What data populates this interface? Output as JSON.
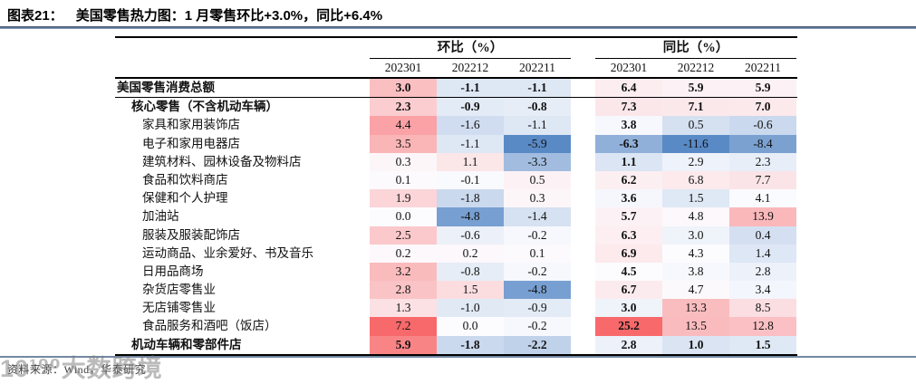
{
  "header": {
    "figure_label": "图表21：",
    "figure_caption": "美国零售热力图：1 月零售环比+3.0%，同比+6.4%"
  },
  "footer": {
    "source": "资料来源：Wind，华泰研究",
    "watermark": "10¹⁰⁰大数跨境"
  },
  "colors": {
    "title_rule_dark": "#34455E",
    "title_rule_light": "#8FA8C8",
    "footer_rule": "#7388A3",
    "table_line": "#000000",
    "heat_negative": "#5A8AC6",
    "heat_mid": "#FCFCFF",
    "heat_positive": "#F8696B"
  },
  "chart_data": {
    "type": "heatmap",
    "title": "图表21：美国零售热力图：1 月零售环比+3.0%，同比+6.4%",
    "column_groups": [
      {
        "key": "mom",
        "label": "环比（%）",
        "columns": [
          "202301",
          "202212",
          "202211"
        ]
      },
      {
        "key": "yoy",
        "label": "同比（%）",
        "columns": [
          "202301",
          "202212",
          "202211"
        ]
      }
    ],
    "rows": [
      {
        "label": "美国零售消费总额",
        "indent": 0,
        "bold": true,
        "mom": [
          3.0,
          -1.1,
          -1.1
        ],
        "yoy": [
          6.4,
          5.9,
          5.9
        ]
      },
      {
        "label": "核心零售（不含机动车辆）",
        "indent": 1,
        "bold": true,
        "mom": [
          2.3,
          -0.9,
          -0.8
        ],
        "yoy": [
          7.3,
          7.1,
          7.0
        ]
      },
      {
        "label": "家具和家用装饰店",
        "indent": 2,
        "bold": false,
        "mom": [
          4.4,
          -1.6,
          -1.1
        ],
        "yoy": [
          3.8,
          0.5,
          -0.6
        ]
      },
      {
        "label": "电子和家用电器店",
        "indent": 2,
        "bold": false,
        "mom": [
          3.5,
          -1.1,
          -5.9
        ],
        "yoy": [
          -6.3,
          -11.6,
          -8.4
        ]
      },
      {
        "label": "建筑材料、园林设备及物料店",
        "indent": 2,
        "bold": false,
        "mom": [
          0.3,
          1.1,
          -3.3
        ],
        "yoy": [
          1.1,
          2.9,
          2.3
        ]
      },
      {
        "label": "食品和饮料商店",
        "indent": 2,
        "bold": false,
        "mom": [
          0.1,
          -0.1,
          0.5
        ],
        "yoy": [
          6.2,
          6.8,
          7.7
        ]
      },
      {
        "label": "保健和个人护理",
        "indent": 2,
        "bold": false,
        "mom": [
          1.9,
          -1.8,
          0.3
        ],
        "yoy": [
          3.6,
          1.5,
          4.1
        ]
      },
      {
        "label": "加油站",
        "indent": 2,
        "bold": false,
        "mom": [
          0.0,
          -4.8,
          -1.4
        ],
        "yoy": [
          5.7,
          4.8,
          13.9
        ]
      },
      {
        "label": "服装及服装配饰店",
        "indent": 2,
        "bold": false,
        "mom": [
          2.5,
          -0.6,
          -0.2
        ],
        "yoy": [
          6.3,
          3.0,
          0.4
        ]
      },
      {
        "label": "运动商品、业余爱好、书及音乐",
        "indent": 2,
        "bold": false,
        "mom": [
          0.2,
          0.2,
          0.1
        ],
        "yoy": [
          6.9,
          4.3,
          1.4
        ]
      },
      {
        "label": "日用品商场",
        "indent": 2,
        "bold": false,
        "mom": [
          3.2,
          -0.8,
          -0.2
        ],
        "yoy": [
          4.5,
          3.8,
          2.8
        ]
      },
      {
        "label": "杂货店零售业",
        "indent": 2,
        "bold": false,
        "mom": [
          2.8,
          1.5,
          -4.8
        ],
        "yoy": [
          6.7,
          4.7,
          3.4
        ]
      },
      {
        "label": "无店铺零售业",
        "indent": 2,
        "bold": false,
        "mom": [
          1.3,
          -1.0,
          -0.9
        ],
        "yoy": [
          3.0,
          13.3,
          8.5
        ]
      },
      {
        "label": "食品服务和酒吧（饭店）",
        "indent": 2,
        "bold": false,
        "mom": [
          7.2,
          0.0,
          -0.2
        ],
        "yoy": [
          25.2,
          13.5,
          12.8
        ]
      },
      {
        "label": "机动车辆和零部件店",
        "indent": 1,
        "bold": true,
        "mom": [
          5.9,
          -1.8,
          -2.2
        ],
        "yoy": [
          2.8,
          1.0,
          1.5
        ]
      }
    ],
    "value_format": "one_decimal",
    "heatmap_scale": {
      "negative_color": "#5A8AC6",
      "mid_color": "#FCFCFF",
      "positive_color": "#F8696B",
      "mom": {
        "min": -5.9,
        "mid": 0.0,
        "max": 7.2
      },
      "yoy": {
        "min": -11.6,
        "mid": 4.3,
        "max": 25.2
      }
    },
    "layout": {
      "bold_first_yoy_column": true,
      "grid": false,
      "legend": "none"
    }
  }
}
